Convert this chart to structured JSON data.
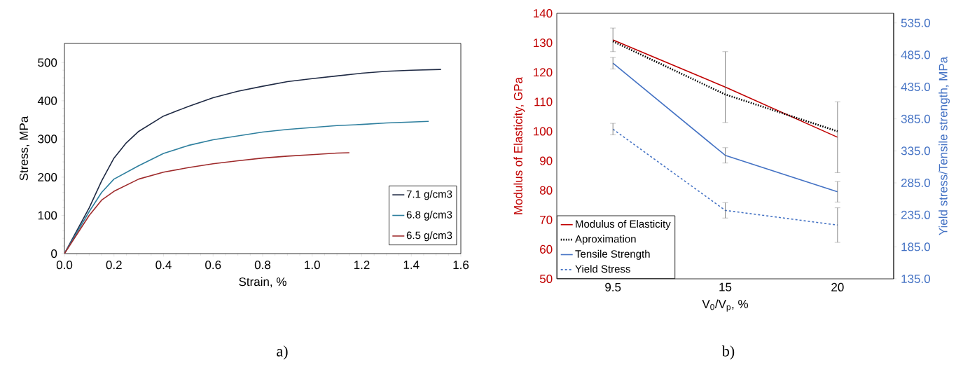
{
  "chart_data": [
    {
      "type": "line",
      "xlabel": "Strain, %",
      "ylabel": "Stress, MPa",
      "xlim": [
        0,
        1.6
      ],
      "ylim": [
        0,
        550
      ],
      "xticks": [
        {
          "value": 0,
          "label": "0.0"
        },
        0.2,
        0.4,
        0.6,
        0.8,
        {
          "value": 1,
          "label": "1.0"
        },
        1.2,
        1.4,
        1.6
      ],
      "yticks": [
        0,
        100,
        200,
        300,
        400,
        500
      ],
      "grid": false,
      "legend": "bottom right",
      "marker": "none",
      "annotations": [
        "a)"
      ],
      "series": [
        {
          "name": "7.1 g/cm3",
          "color": "#1f2a44",
          "x": [
            0,
            0.05,
            0.1,
            0.15,
            0.2,
            0.25,
            0.3,
            0.4,
            0.5,
            0.6,
            0.7,
            0.8,
            0.9,
            1.0,
            1.1,
            1.2,
            1.3,
            1.4,
            1.52
          ],
          "values": [
            0,
            60,
            120,
            190,
            250,
            290,
            320,
            360,
            385,
            408,
            425,
            438,
            450,
            458,
            465,
            472,
            477,
            480,
            482
          ]
        },
        {
          "name": "6.8 g/cm3",
          "color": "#2e7f9e",
          "x": [
            0,
            0.05,
            0.1,
            0.15,
            0.2,
            0.3,
            0.4,
            0.5,
            0.6,
            0.7,
            0.8,
            0.9,
            1.0,
            1.1,
            1.2,
            1.3,
            1.47
          ],
          "values": [
            0,
            55,
            110,
            160,
            195,
            230,
            262,
            283,
            298,
            308,
            318,
            325,
            330,
            335,
            338,
            342,
            346
          ]
        },
        {
          "name": "6.5 g/cm3",
          "color": "#9e2a2b",
          "x": [
            0,
            0.05,
            0.1,
            0.15,
            0.2,
            0.3,
            0.4,
            0.5,
            0.6,
            0.7,
            0.8,
            0.9,
            1.0,
            1.1,
            1.15
          ],
          "values": [
            0,
            50,
            100,
            140,
            163,
            195,
            213,
            225,
            235,
            243,
            250,
            255,
            259,
            263,
            264
          ]
        }
      ]
    },
    {
      "type": "line",
      "xlabel": "V$_{0}$/V$_{p}$, %",
      "ylabel": "Modulus of Elasticity, GPa",
      "y2label": "Yield stress/Tensile strength, MPa",
      "categories": [
        "9.5",
        "15",
        "20"
      ],
      "ylim": [
        50,
        140
      ],
      "yticks": [
        50,
        60,
        70,
        80,
        90,
        100,
        110,
        120,
        130,
        140
      ],
      "y2lim": [
        135,
        550
      ],
      "y2ticks": [
        {
          "value": 135,
          "label": "135.0"
        },
        {
          "value": 185,
          "label": "185.0"
        },
        {
          "value": 235,
          "label": "235.0"
        },
        {
          "value": 285,
          "label": "285.0"
        },
        {
          "value": 335,
          "label": "335.0"
        },
        {
          "value": 385,
          "label": "385.0"
        },
        {
          "value": 435,
          "label": "435.0"
        },
        {
          "value": 485,
          "label": "485.0"
        },
        {
          "value": 535,
          "label": "535.0"
        }
      ],
      "grid": false,
      "legend": "bottom left",
      "marker": "none",
      "annotations": [
        "b)"
      ],
      "series": [
        {
          "name": "Modulus of Elasticity",
          "color": "#c00000",
          "values": [
            131,
            115,
            98
          ],
          "errors": [
            4,
            12,
            12
          ]
        },
        {
          "name": "Aproximation",
          "color": "#000000",
          "line_style": "dotted",
          "values": [
            130.5,
            112.5,
            100
          ]
        },
        {
          "name": "Tensile Strength",
          "color": "#4472c4",
          "axis": "y2",
          "values": [
            472,
            328,
            271
          ],
          "errors": [
            9,
            12,
            16
          ]
        },
        {
          "name": "Yield Stress",
          "color": "#4472c4",
          "axis": "y2",
          "line_style": "dashed",
          "values": [
            369,
            242,
            219
          ],
          "errors": [
            9,
            12,
            27
          ]
        }
      ]
    }
  ]
}
